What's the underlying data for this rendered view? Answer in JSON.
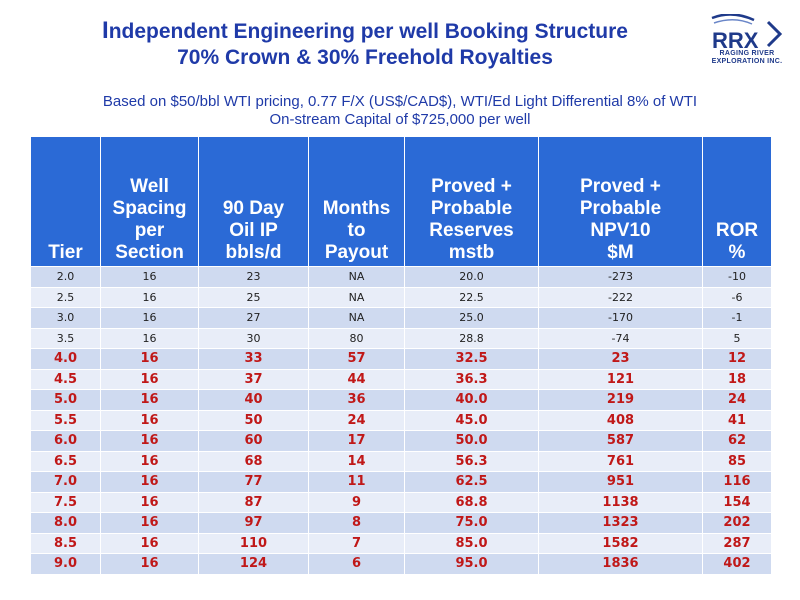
{
  "title": {
    "line1_cap": "I",
    "line1_rest": "ndependent Engineering per well Booking Structure",
    "line2": "70% Crown & 30% Freehold Royalties"
  },
  "logo": {
    "mark": "RRX",
    "line1": "RAGING RIVER",
    "line2": "EXPLORATION INC."
  },
  "subtitle": {
    "line1": "Based on  $50/bbl WTI pricing, 0.77 F/X (US$/CAD$), WTI/Ed Light Differential 8% of WTI",
    "line2": "On-stream Capital of $725,000 per well"
  },
  "table": {
    "headers": [
      [
        "Tier"
      ],
      [
        "Well",
        "Spacing",
        "per",
        "Section"
      ],
      [
        "90 Day",
        "Oil IP",
        "bbls/d"
      ],
      [
        "Months",
        "to",
        "Payout"
      ],
      [
        "Proved +",
        "Probable",
        "Reserves",
        "mstb"
      ],
      [
        "Proved +",
        "Probable",
        "NPV10",
        "$M"
      ],
      [
        "ROR",
        "%"
      ]
    ],
    "rows": [
      [
        "2.0",
        "16",
        "23",
        "NA",
        "20.0",
        "-273",
        "-10"
      ],
      [
        "2.5",
        "16",
        "25",
        "NA",
        "22.5",
        "-222",
        "-6"
      ],
      [
        "3.0",
        "16",
        "27",
        "NA",
        "25.0",
        "-170",
        "-1"
      ],
      [
        "3.5",
        "16",
        "30",
        "80",
        "28.8",
        "-74",
        "5"
      ],
      [
        "4.0",
        "16",
        "33",
        "57",
        "32.5",
        "23",
        "12"
      ],
      [
        "4.5",
        "16",
        "37",
        "44",
        "36.3",
        "121",
        "18"
      ],
      [
        "5.0",
        "16",
        "40",
        "36",
        "40.0",
        "219",
        "24"
      ],
      [
        "5.5",
        "16",
        "50",
        "24",
        "45.0",
        "408",
        "41"
      ],
      [
        "6.0",
        "16",
        "60",
        "17",
        "50.0",
        "587",
        "62"
      ],
      [
        "6.5",
        "16",
        "68",
        "14",
        "56.3",
        "761",
        "85"
      ],
      [
        "7.0",
        "16",
        "77",
        "11",
        "62.5",
        "951",
        "116"
      ],
      [
        "7.5",
        "16",
        "87",
        "9",
        "68.8",
        "1138",
        "154"
      ],
      [
        "8.0",
        "16",
        "97",
        "8",
        "75.0",
        "1323",
        "202"
      ],
      [
        "8.5",
        "16",
        "110",
        "7",
        "85.0",
        "1582",
        "287"
      ],
      [
        "9.0",
        "16",
        "124",
        "6",
        "95.0",
        "1836",
        "402"
      ]
    ],
    "highlight_from_row": 4
  },
  "colors": {
    "title": "#1f3aa8",
    "header_bg": "#2b6ad6",
    "row_shade_a": "#cfdaf0",
    "row_shade_b": "#e8edf8",
    "highlight_text": "#c01818"
  }
}
